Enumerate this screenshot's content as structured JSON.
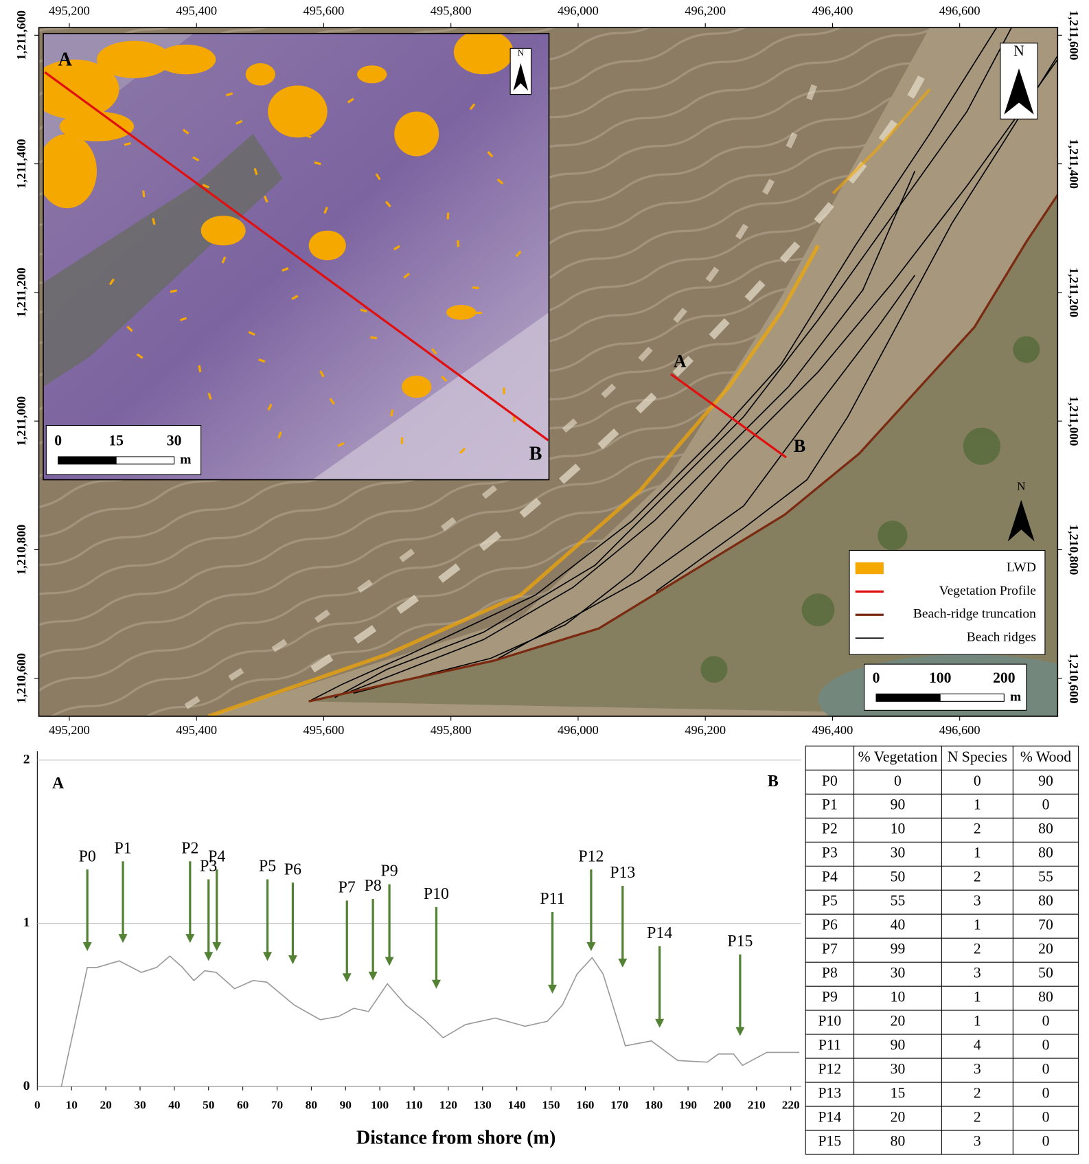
{
  "chart_data": [
    {
      "type": "map",
      "xlim": [
        495152,
        496754
      ],
      "ylim": [
        1210541,
        1211612
      ],
      "xticks": [
        {
          "value": 495200,
          "label": "495,200"
        },
        {
          "value": 495400,
          "label": "495,400"
        },
        {
          "value": 495600,
          "label": "495,600"
        },
        {
          "value": 495800,
          "label": "495,800"
        },
        {
          "value": 496000,
          "label": "496,000"
        },
        {
          "value": 496200,
          "label": "496,200"
        },
        {
          "value": 496400,
          "label": "496,400"
        },
        {
          "value": 496600,
          "label": "496,600"
        }
      ],
      "yticks": [
        {
          "value": 1210600,
          "label": "1,210,600"
        },
        {
          "value": 1210800,
          "label": "1,210,800"
        },
        {
          "value": 1211000,
          "label": "1,211,000"
        },
        {
          "value": 1211200,
          "label": "1,211,200"
        },
        {
          "value": 1211400,
          "label": "1,211,400"
        },
        {
          "value": 1211600,
          "label": "1,211,600"
        }
      ],
      "profile_labels": [
        "A",
        "B"
      ],
      "north": "N",
      "legend": [
        {
          "name": "LWD",
          "color": "#f5a800"
        },
        {
          "name": "Vegetation Profile",
          "color": "#e01010"
        },
        {
          "name": "Beach-ridge truncation",
          "color": "#7a2a10"
        },
        {
          "name": "Beach ridges",
          "color": "#000000"
        }
      ],
      "scale_bar": {
        "labels": [
          0,
          100,
          200
        ],
        "unit": "m"
      },
      "inset": {
        "profile_labels": [
          "A",
          "B"
        ],
        "north": "N",
        "scale_bar": {
          "labels": [
            0,
            15,
            30
          ],
          "unit": "m"
        }
      }
    },
    {
      "type": "line",
      "xlim": [
        0,
        223
      ],
      "ylim": [
        0,
        2
      ],
      "xticks": [
        0,
        10,
        20,
        30,
        40,
        50,
        60,
        70,
        80,
        90,
        100,
        110,
        120,
        130,
        140,
        150,
        160,
        170,
        180,
        190,
        200,
        210,
        220
      ],
      "yticks": [
        0,
        1,
        2
      ],
      "grid": true,
      "xlabel": "Distance from shore (m)",
      "annotations": [
        "A",
        "B"
      ],
      "color": "#999999",
      "x": [
        7,
        14.6,
        17.4,
        23.9,
        30.4,
        34.8,
        38.7,
        42.4,
        45.7,
        48.9,
        52.2,
        57.6,
        63,
        67,
        75,
        82.6,
        88,
        92.4,
        96.7,
        102.2,
        107.6,
        113,
        118.5,
        125,
        133.7,
        142.4,
        148.9,
        153.3,
        157.6,
        162,
        165.2,
        171.7,
        179.3,
        187,
        195.6,
        198.9,
        203.3,
        205.9,
        213,
        222.5
      ],
      "values": [
        0,
        0.73,
        0.73,
        0.77,
        0.7,
        0.73,
        0.8,
        0.73,
        0.65,
        0.71,
        0.7,
        0.6,
        0.65,
        0.64,
        0.5,
        0.41,
        0.43,
        0.48,
        0.46,
        0.63,
        0.5,
        0.41,
        0.3,
        0.38,
        0.42,
        0.37,
        0.4,
        0.5,
        0.69,
        0.79,
        0.69,
        0.25,
        0.28,
        0.16,
        0.15,
        0.2,
        0.2,
        0.13,
        0.21,
        0.21
      ],
      "points": {
        "color": "#548235",
        "labels": [
          "P0",
          "P1",
          "P2",
          "P3",
          "P4",
          "P5",
          "P6",
          "P7",
          "P8",
          "P9",
          "P10",
          "P11",
          "P12",
          "P13",
          "P14",
          "P15"
        ],
        "x": [
          14.6,
          25,
          44.6,
          50,
          52.4,
          67.2,
          74.6,
          90.4,
          98,
          102.8,
          116.5,
          150.4,
          161.7,
          170.9,
          181.7,
          205.2
        ],
        "y": [
          0.83,
          0.88,
          0.88,
          0.77,
          0.83,
          0.77,
          0.75,
          0.64,
          0.65,
          0.74,
          0.6,
          0.57,
          0.83,
          0.73,
          0.36,
          0.31
        ]
      }
    }
  ],
  "table": {
    "header": [
      "% Vegetation",
      "N Species",
      "% Wood"
    ],
    "rows": [
      [
        "P0",
        0,
        0,
        90
      ],
      [
        "P1",
        90,
        1,
        0
      ],
      [
        "P2",
        10,
        2,
        80
      ],
      [
        "P3",
        30,
        1,
        80
      ],
      [
        "P4",
        50,
        2,
        55
      ],
      [
        "P5",
        55,
        3,
        80
      ],
      [
        "P6",
        40,
        1,
        70
      ],
      [
        "P7",
        99,
        2,
        20
      ],
      [
        "P8",
        30,
        3,
        50
      ],
      [
        "P9",
        10,
        1,
        80
      ],
      [
        "P10",
        20,
        1,
        0
      ],
      [
        "P11",
        90,
        4,
        0
      ],
      [
        "P12",
        30,
        3,
        0
      ],
      [
        "P13",
        15,
        2,
        0
      ],
      [
        "P14",
        20,
        2,
        0
      ],
      [
        "P15",
        80,
        3,
        0
      ]
    ]
  }
}
